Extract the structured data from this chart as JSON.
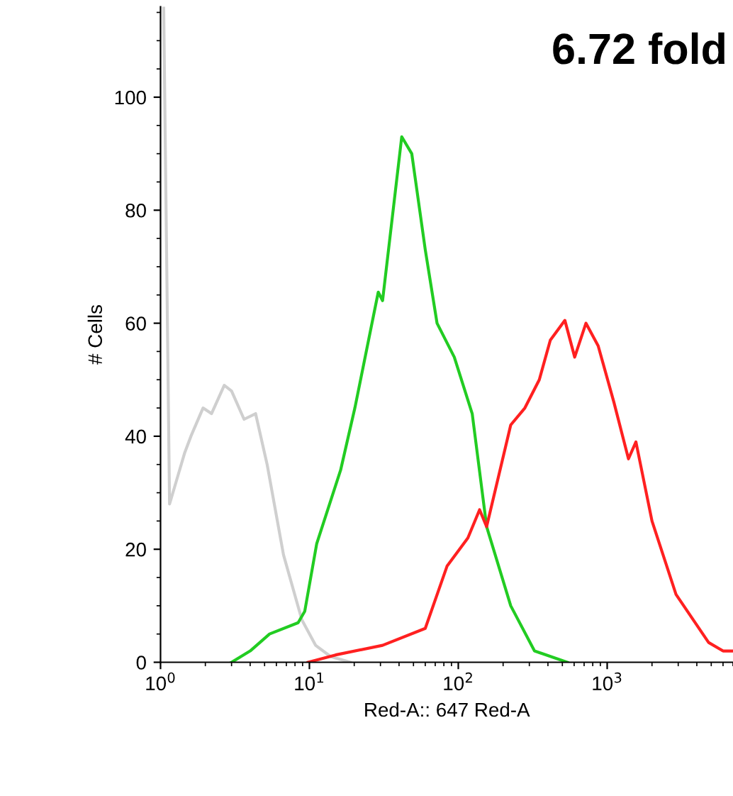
{
  "chart_data": {
    "type": "line",
    "xlabel": "Red-A:: 647 Red-A",
    "ylabel": "# Cells",
    "annotations": [
      "6.72 fold"
    ],
    "log": "x",
    "xlim": [
      1,
      7000
    ],
    "ylim": [
      0,
      116
    ],
    "xticks": [
      {
        "value": 1,
        "label": "10$^{0}$"
      },
      {
        "value": 10,
        "label": "10$^{1}$"
      },
      {
        "value": 100,
        "label": "10$^{2}$"
      },
      {
        "value": 1000,
        "label": "10$^{3}$"
      }
    ],
    "yticks": [
      0,
      20,
      40,
      60,
      80,
      100
    ],
    "grid": false,
    "marker": "none",
    "line_style": "solid",
    "series": [
      {
        "color": "#cfcfcf",
        "x": [
          1.05,
          1.15,
          1.45,
          1.6,
          1.93,
          2.2,
          2.68,
          3.0,
          3.64,
          4.35,
          5.2,
          6.7,
          8.9,
          11,
          13.9,
          18.8
        ],
        "values": [
          116,
          28,
          37,
          40,
          45,
          44,
          49,
          48,
          43,
          44,
          35,
          19,
          7.5,
          3,
          1,
          0
        ]
      },
      {
        "color": "#22cc22",
        "x": [
          3.0,
          4.0,
          5.4,
          8.4,
          9.3,
          11.2,
          16.2,
          20.2,
          29,
          31,
          41.7,
          48.7,
          60,
          72,
          94,
          124,
          155,
          225,
          325,
          540
        ],
        "values": [
          0,
          2,
          5,
          7,
          9,
          21,
          34,
          45,
          65.5,
          64,
          93,
          90,
          73,
          60,
          54,
          44,
          24,
          10,
          2,
          0
        ]
      },
      {
        "color": "#ff2020",
        "x": [
          9.8,
          15,
          31,
          60,
          84,
          116,
          139,
          155,
          225,
          280,
          350,
          415,
          520,
          605,
          720,
          870,
          1110,
          1390,
          1560,
          2000,
          2900,
          4800,
          6000,
          7000
        ],
        "values": [
          0,
          1.3,
          3,
          6,
          17,
          22,
          27,
          24,
          42,
          45,
          50,
          57,
          60.5,
          54,
          60,
          56,
          46,
          36,
          39,
          25,
          12,
          3.5,
          2,
          2
        ]
      }
    ]
  }
}
